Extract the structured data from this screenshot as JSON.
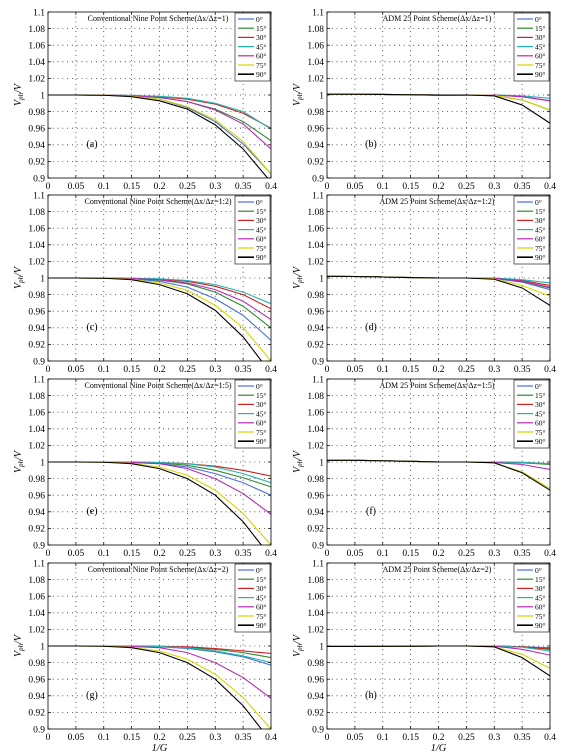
{
  "figure": {
    "ylabel_main": "V",
    "ylabel_sub": "ph",
    "ylabel_tail": "/V",
    "xlabel": "1/G",
    "x_ticks": [
      "0",
      "0.05",
      "0.1",
      "0.15",
      "0.2",
      "0.25",
      "0.3",
      "0.35",
      "0.4"
    ],
    "y_ticks": [
      "0.9",
      "0.92",
      "0.94",
      "0.96",
      "0.98",
      "1",
      "1.02",
      "1.04",
      "1.06",
      "1.08",
      "1.1"
    ],
    "legend_labels": [
      "0°",
      "15°",
      "30°",
      "45°",
      "60°",
      "75°",
      "90°"
    ],
    "colors": {
      "0deg": "#4a6fd8",
      "15deg": "#2e8b2e",
      "30deg": "#d42020",
      "45deg": "#20b4b4",
      "60deg": "#b42cb4",
      "75deg": "#d6d600",
      "90deg": "#000000"
    }
  },
  "chart_data": [
    {
      "type": "line",
      "title": "Conventional Nine Point Scheme(Δx/Δz=1)",
      "panel_label": "(a)",
      "xlabel": "",
      "ylabel": "Vph/V",
      "xlim": [
        0,
        0.4
      ],
      "ylim": [
        0.9,
        1.1
      ],
      "grid": true,
      "legend": "top-right",
      "x": [
        0,
        0.05,
        0.1,
        0.15,
        0.2,
        0.25,
        0.3,
        0.35,
        0.4
      ],
      "series": [
        {
          "name": "0°",
          "values": [
            1,
            1,
            0.9998,
            0.9985,
            0.995,
            0.985,
            0.968,
            0.941,
            0.905
          ]
        },
        {
          "name": "15°",
          "values": [
            1,
            1,
            0.9998,
            0.999,
            0.997,
            0.992,
            0.983,
            0.968,
            0.945
          ]
        },
        {
          "name": "30°",
          "values": [
            1,
            1,
            0.9999,
            0.9994,
            0.998,
            0.995,
            0.989,
            0.978,
            0.96
          ]
        },
        {
          "name": "45°",
          "values": [
            1,
            1,
            0.9999,
            0.9995,
            0.9985,
            0.996,
            0.99,
            0.98,
            0.959
          ]
        },
        {
          "name": "60°",
          "values": [
            1,
            1,
            0.9999,
            0.999,
            0.997,
            0.992,
            0.982,
            0.965,
            0.935
          ]
        },
        {
          "name": "75°",
          "values": [
            1,
            1,
            0.9998,
            0.9985,
            0.995,
            0.986,
            0.97,
            0.944,
            0.905
          ]
        },
        {
          "name": "90°",
          "values": [
            1,
            1,
            0.9997,
            0.998,
            0.993,
            0.983,
            0.964,
            0.935,
            0.895
          ]
        }
      ]
    },
    {
      "type": "line",
      "title": "ADM 25 Point Scheme(Δx/Δz=1)",
      "panel_label": "(b)",
      "xlabel": "",
      "ylabel": "Vph/V",
      "xlim": [
        0,
        0.4
      ],
      "ylim": [
        0.9,
        1.1
      ],
      "grid": true,
      "legend": "top-right",
      "x": [
        0,
        0.05,
        0.1,
        0.15,
        0.2,
        0.25,
        0.3,
        0.35,
        0.4
      ],
      "series": [
        {
          "name": "0°",
          "values": [
            1.001,
            1.001,
            1.0007,
            1.0002,
            0.9999,
            1.0,
            0.999,
            0.988,
            0.966
          ]
        },
        {
          "name": "15°",
          "values": [
            1.001,
            1.001,
            1.0007,
            1.0002,
            0.9999,
            1.0,
            0.9995,
            0.994,
            0.982
          ]
        },
        {
          "name": "30°",
          "values": [
            1.001,
            1.001,
            1.0007,
            1.0002,
            0.9999,
            1.0,
            1.0,
            0.998,
            0.993
          ]
        },
        {
          "name": "45°",
          "values": [
            1.001,
            1.001,
            1.0007,
            1.0002,
            0.9999,
            1.0,
            1.0,
            0.999,
            0.996
          ]
        },
        {
          "name": "60°",
          "values": [
            1.001,
            1.001,
            1.0007,
            1.0002,
            0.9999,
            1.0,
            1.0,
            0.998,
            0.993
          ]
        },
        {
          "name": "75°",
          "values": [
            1.001,
            1.001,
            1.0007,
            1.0002,
            0.9999,
            1.0,
            0.9995,
            0.994,
            0.982
          ]
        },
        {
          "name": "90°",
          "values": [
            1.001,
            1.001,
            1.0007,
            1.0002,
            0.9999,
            1.0,
            0.999,
            0.988,
            0.966
          ]
        }
      ]
    },
    {
      "type": "line",
      "title": "Conventional Nine Point Scheme(Δx/Δz=1:2)",
      "panel_label": "(c)",
      "xlabel": "",
      "ylabel": "Vph/V",
      "xlim": [
        0,
        0.4
      ],
      "ylim": [
        0.9,
        1.1
      ],
      "grid": true,
      "legend": "top-right",
      "x": [
        0,
        0.05,
        0.1,
        0.15,
        0.2,
        0.25,
        0.3,
        0.35,
        0.4
      ],
      "series": [
        {
          "name": "0°",
          "values": [
            1,
            1,
            0.9999,
            0.999,
            0.996,
            0.989,
            0.975,
            0.955,
            0.925
          ]
        },
        {
          "name": "15°",
          "values": [
            1,
            1,
            0.9999,
            0.9993,
            0.9975,
            0.993,
            0.983,
            0.966,
            0.94
          ]
        },
        {
          "name": "30°",
          "values": [
            1,
            1,
            0.9999,
            0.9996,
            0.9985,
            0.996,
            0.99,
            0.98,
            0.963
          ]
        },
        {
          "name": "45°",
          "values": [
            1,
            1,
            0.9999,
            0.9997,
            0.999,
            0.997,
            0.992,
            0.983,
            0.969
          ]
        },
        {
          "name": "60°",
          "values": [
            1,
            1,
            0.9999,
            0.9994,
            0.998,
            0.994,
            0.986,
            0.972,
            0.95
          ]
        },
        {
          "name": "75°",
          "values": [
            1,
            1,
            0.9998,
            0.9985,
            0.994,
            0.985,
            0.967,
            0.94,
            0.9
          ]
        },
        {
          "name": "90°",
          "values": [
            1,
            1,
            0.9997,
            0.998,
            0.992,
            0.981,
            0.961,
            0.929,
            0.885
          ]
        }
      ]
    },
    {
      "type": "line",
      "title": "ADM 25 Point Scheme(Δx/Δz=1:2)",
      "panel_label": "(d)",
      "xlabel": "",
      "ylabel": "Vph/V",
      "xlim": [
        0,
        0.4
      ],
      "ylim": [
        0.9,
        1.1
      ],
      "grid": true,
      "legend": "top-right",
      "x": [
        0,
        0.05,
        0.1,
        0.15,
        0.2,
        0.25,
        0.3,
        0.35,
        0.4
      ],
      "series": [
        {
          "name": "0°",
          "values": [
            1.002,
            1.0018,
            1.0012,
            1.0005,
            1.0,
            1.0,
            0.9995,
            0.995,
            0.986
          ]
        },
        {
          "name": "15°",
          "values": [
            1.002,
            1.0018,
            1.0012,
            1.0005,
            1.0,
            1.0,
            0.9995,
            0.996,
            0.988
          ]
        },
        {
          "name": "30°",
          "values": [
            1.002,
            1.0018,
            1.0012,
            1.0005,
            1.0,
            1.0,
            1.0,
            0.997,
            0.991
          ]
        },
        {
          "name": "45°",
          "values": [
            1.002,
            1.0018,
            1.0012,
            1.0005,
            1.0,
            1.0,
            1.0,
            0.998,
            0.994
          ]
        },
        {
          "name": "60°",
          "values": [
            1.002,
            1.0018,
            1.0012,
            1.0005,
            1.0,
            1.0,
            0.9998,
            0.996,
            0.989
          ]
        },
        {
          "name": "75°",
          "values": [
            1.002,
            1.0018,
            1.0012,
            1.0005,
            1.0,
            1.0,
            0.999,
            0.991,
            0.978
          ]
        },
        {
          "name": "90°",
          "values": [
            1.002,
            1.0018,
            1.0012,
            1.0005,
            1.0,
            1.0,
            0.9985,
            0.988,
            0.967
          ]
        }
      ]
    },
    {
      "type": "line",
      "title": "Conventional Nine Point Scheme(Δx/Δz=1:5)",
      "panel_label": "(e)",
      "xlabel": "",
      "ylabel": "Vph/V",
      "xlim": [
        0,
        0.4
      ],
      "ylim": [
        0.9,
        1.1
      ],
      "grid": true,
      "legend": "top-right",
      "x": [
        0,
        0.05,
        0.1,
        0.15,
        0.2,
        0.25,
        0.3,
        0.35,
        0.4
      ],
      "series": [
        {
          "name": "0°",
          "values": [
            1,
            1,
            1.0,
            0.9995,
            0.998,
            0.994,
            0.986,
            0.975,
            0.96
          ]
        },
        {
          "name": "15°",
          "values": [
            1,
            1,
            1.0,
            0.9997,
            0.999,
            0.996,
            0.99,
            0.981,
            0.97
          ]
        },
        {
          "name": "30°",
          "values": [
            1,
            1,
            1.0,
            0.9998,
            0.9993,
            0.998,
            0.995,
            0.99,
            0.983
          ]
        },
        {
          "name": "45°",
          "values": [
            1,
            1,
            1.0,
            0.9998,
            0.9993,
            0.998,
            0.994,
            0.986,
            0.975
          ]
        },
        {
          "name": "60°",
          "values": [
            1,
            1,
            1.0,
            0.9995,
            0.998,
            0.992,
            0.98,
            0.962,
            0.937
          ]
        },
        {
          "name": "75°",
          "values": [
            1,
            1,
            0.9998,
            0.9985,
            0.994,
            0.984,
            0.966,
            0.938,
            0.9
          ]
        },
        {
          "name": "90°",
          "values": [
            1,
            1,
            0.9997,
            0.998,
            0.992,
            0.98,
            0.96,
            0.928,
            0.885
          ]
        }
      ]
    },
    {
      "type": "line",
      "title": "ADM 25 Point Scheme(Δx/Δz=1:5)",
      "panel_label": "(f)",
      "xlabel": "",
      "ylabel": "Vph/V",
      "xlim": [
        0,
        0.4
      ],
      "ylim": [
        0.9,
        1.1
      ],
      "grid": true,
      "legend": "top-right",
      "x": [
        0,
        0.05,
        0.1,
        0.15,
        0.2,
        0.25,
        0.3,
        0.35,
        0.4
      ],
      "series": [
        {
          "name": "0°",
          "values": [
            1.002,
            1.002,
            1.0015,
            1.0008,
            1.0,
            1.0,
            1.0,
            0.999,
            0.998
          ]
        },
        {
          "name": "15°",
          "values": [
            1.002,
            1.002,
            1.0015,
            1.0008,
            1.0,
            1.0,
            1.0,
            0.999,
            0.997
          ]
        },
        {
          "name": "30°",
          "values": [
            1.002,
            1.002,
            1.0015,
            1.0008,
            1.0,
            1.0,
            1.0,
            0.9995,
            0.998
          ]
        },
        {
          "name": "45°",
          "values": [
            1.002,
            1.002,
            1.0015,
            1.0008,
            1.0,
            1.0,
            1.0,
            0.9995,
            0.998
          ]
        },
        {
          "name": "60°",
          "values": [
            1.002,
            1.002,
            1.0015,
            1.0008,
            1.0,
            1.0,
            0.9995,
            0.997,
            0.991
          ]
        },
        {
          "name": "75°",
          "values": [
            1.002,
            1.002,
            1.0015,
            1.0008,
            1.0,
            1.0,
            0.999,
            0.988,
            0.968
          ]
        },
        {
          "name": "90°",
          "values": [
            1.002,
            1.002,
            1.0015,
            1.0008,
            1.0,
            1.0,
            0.999,
            0.987,
            0.966
          ]
        }
      ]
    },
    {
      "type": "line",
      "title": "Conventional Nine Point Scheme(Δx/Δz=2)",
      "panel_label": "(g)",
      "xlabel": "1/G",
      "ylabel": "Vph/V",
      "xlim": [
        0,
        0.4
      ],
      "ylim": [
        0.9,
        1.1
      ],
      "grid": true,
      "legend": "top-right",
      "x": [
        0,
        0.05,
        0.1,
        0.15,
        0.2,
        0.25,
        0.3,
        0.35,
        0.4
      ],
      "series": [
        {
          "name": "0°",
          "values": [
            1,
            1,
            1.0,
            0.9998,
            0.999,
            0.997,
            0.993,
            0.987,
            0.977
          ]
        },
        {
          "name": "15°",
          "values": [
            1,
            1,
            1.0,
            0.9999,
            0.9995,
            0.998,
            0.996,
            0.992,
            0.986
          ]
        },
        {
          "name": "30°",
          "values": [
            1,
            1,
            1.0,
            0.9999,
            0.9997,
            0.999,
            0.997,
            0.994,
            0.991
          ]
        },
        {
          "name": "45°",
          "values": [
            1,
            1,
            1.0,
            0.9998,
            0.9993,
            0.998,
            0.994,
            0.988,
            0.98
          ]
        },
        {
          "name": "60°",
          "values": [
            1,
            1,
            1.0,
            0.9995,
            0.998,
            0.992,
            0.98,
            0.962,
            0.937
          ]
        },
        {
          "name": "75°",
          "values": [
            1,
            1,
            0.9998,
            0.9985,
            0.994,
            0.984,
            0.966,
            0.938,
            0.9
          ]
        },
        {
          "name": "90°",
          "values": [
            1,
            1,
            0.9997,
            0.998,
            0.992,
            0.98,
            0.96,
            0.928,
            0.885
          ]
        }
      ]
    },
    {
      "type": "line",
      "title": "ADM 25 Point Scheme(Δx/Δz=2)",
      "panel_label": "(h)",
      "xlabel": "1/G",
      "ylabel": "Vph/V",
      "xlim": [
        0,
        0.4
      ],
      "ylim": [
        0.9,
        1.1
      ],
      "grid": true,
      "legend": "top-right",
      "x": [
        0,
        0.05,
        0.1,
        0.15,
        0.2,
        0.25,
        0.3,
        0.35,
        0.4
      ],
      "series": [
        {
          "name": "0°",
          "values": [
            0.9995,
            0.9995,
            0.9996,
            0.9998,
            1.0,
            1.0,
            1.0,
            0.999,
            0.998
          ]
        },
        {
          "name": "15°",
          "values": [
            0.9995,
            0.9995,
            0.9996,
            0.9998,
            1.0,
            1.0,
            1.0,
            0.999,
            0.997
          ]
        },
        {
          "name": "30°",
          "values": [
            0.9995,
            0.9995,
            0.9996,
            0.9998,
            1.0,
            1.0,
            1.0,
            0.999,
            0.996
          ]
        },
        {
          "name": "45°",
          "values": [
            0.9995,
            0.9995,
            0.9996,
            0.9998,
            1.0,
            1.0,
            1.0,
            0.9985,
            0.994
          ]
        },
        {
          "name": "60°",
          "values": [
            0.9995,
            0.9995,
            0.9996,
            0.9998,
            1.0,
            1.0,
            0.9998,
            0.996,
            0.989
          ]
        },
        {
          "name": "75°",
          "values": [
            0.9995,
            0.9995,
            0.9996,
            0.9998,
            1.0,
            1.0,
            0.999,
            0.99,
            0.973
          ]
        },
        {
          "name": "90°",
          "values": [
            0.9995,
            0.9995,
            0.9996,
            0.9998,
            1.0,
            1.0,
            0.999,
            0.986,
            0.964
          ]
        }
      ]
    }
  ]
}
